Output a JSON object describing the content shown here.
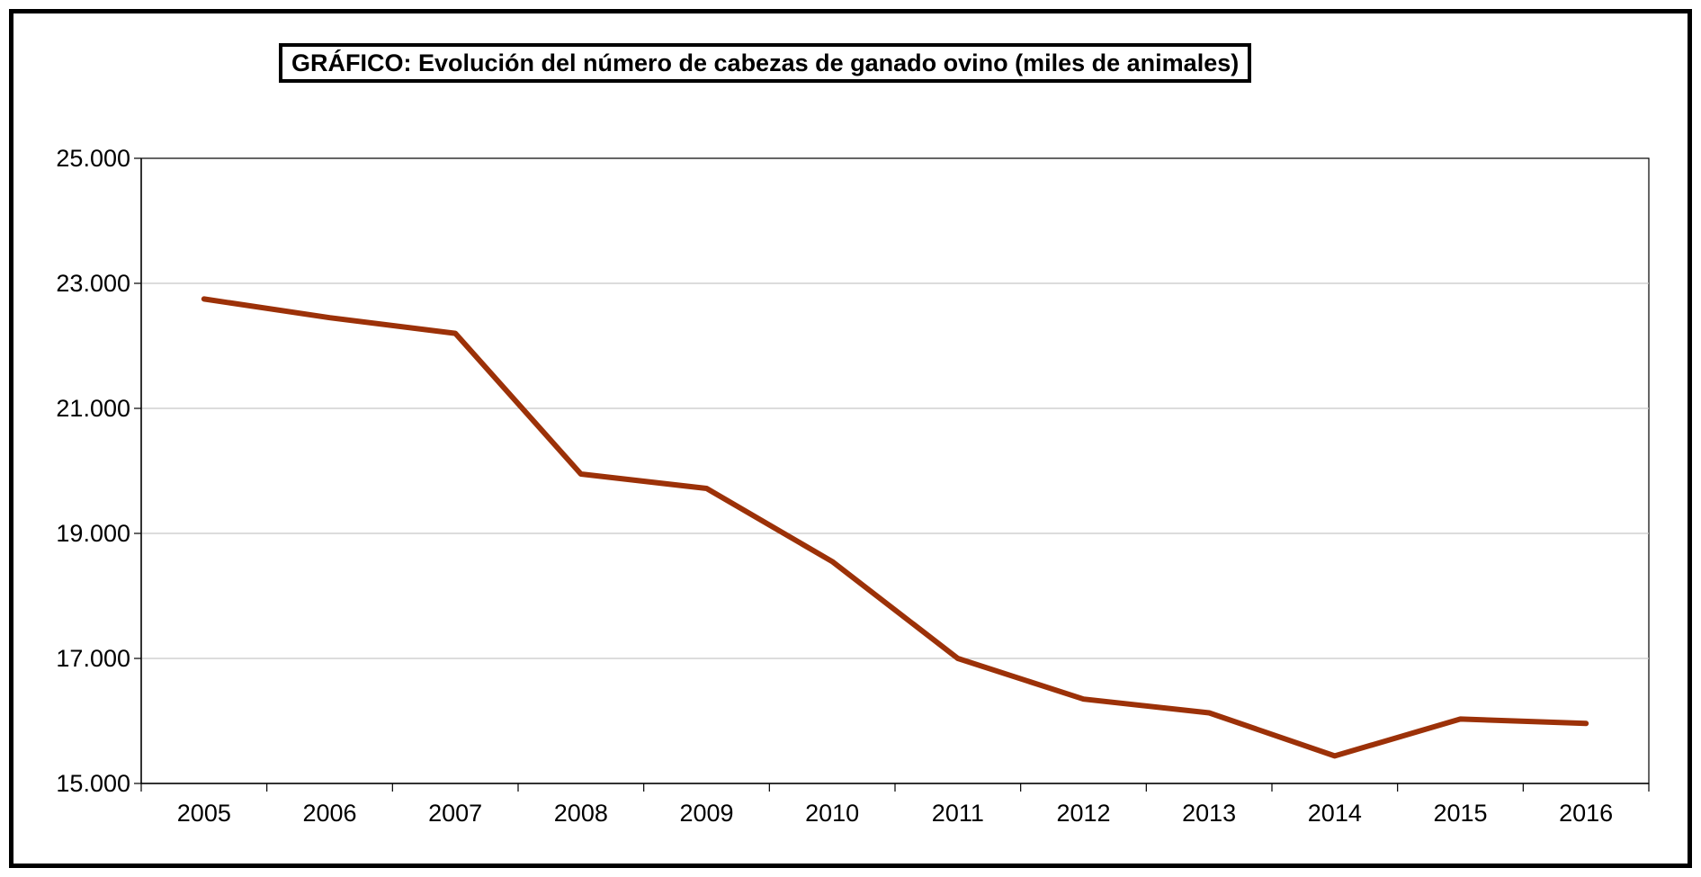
{
  "colors": {
    "line": "#9C3108",
    "grid": "#C8C8C8",
    "axis": "#000000",
    "frame": "#000000"
  },
  "chart_data": {
    "type": "line",
    "title": "GRÁFICO: Evolución del número de cabezas de ganado ovino (miles de animales)",
    "xlabel": "",
    "ylabel": "",
    "categories": [
      "2005",
      "2006",
      "2007",
      "2008",
      "2009",
      "2010",
      "2011",
      "2012",
      "2013",
      "2014",
      "2015",
      "2016"
    ],
    "series": [
      {
        "values": [
          22750,
          22450,
          22200,
          19950,
          19720,
          18550,
          17000,
          16350,
          16130,
          15440,
          16030,
          15960
        ]
      }
    ],
    "ylim": [
      15000,
      25000
    ],
    "yticks": [
      15000,
      17000,
      19000,
      21000,
      23000,
      25000
    ],
    "ytick_labels": [
      "15.000",
      "17.000",
      "19.000",
      "21.000",
      "23.000",
      "25.000"
    ],
    "grid": true,
    "legend": "none"
  }
}
